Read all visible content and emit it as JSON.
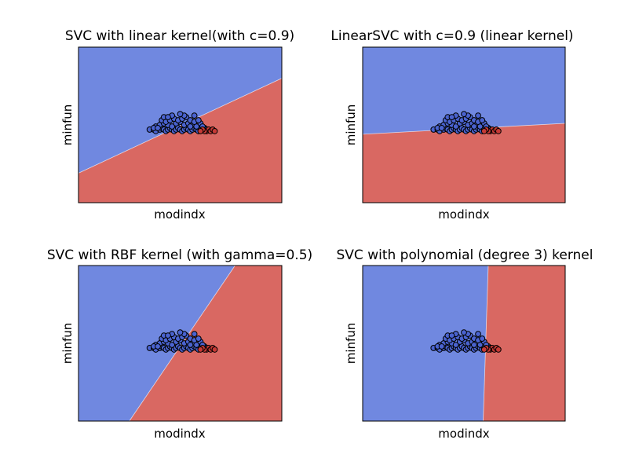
{
  "figure": {
    "background": "#ffffff"
  },
  "colors": {
    "class_blue": "#7088e0",
    "class_red": "#d96862",
    "point_blue": "#4a63d0",
    "point_red": "#c63a36",
    "edge": "#000000"
  },
  "chart_data": [
    {
      "type": "scatter",
      "subtype": "decision-boundary",
      "title": "SVC with linear kernel(with c=0.9)",
      "xlabel": "modindx",
      "ylabel": "minfun",
      "xticks": false,
      "yticks": false,
      "grid": false,
      "boundary": {
        "shape": "line",
        "from": [
          0.0,
          0.19
        ],
        "to": [
          1.0,
          0.8
        ],
        "left_class": "blue",
        "right_class": "red"
      }
    },
    {
      "type": "scatter",
      "subtype": "decision-boundary",
      "title": "LinearSVC with c=0.9 (linear kernel)",
      "xlabel": "modindx",
      "ylabel": "minfun",
      "xticks": false,
      "yticks": false,
      "grid": false,
      "boundary": {
        "shape": "line",
        "from": [
          0.0,
          0.44
        ],
        "to": [
          1.0,
          0.51
        ],
        "upper_class": "blue",
        "lower_class": "red"
      }
    },
    {
      "type": "scatter",
      "subtype": "decision-boundary",
      "title": "SVC with RBF kernel (with gamma=0.5)",
      "xlabel": "modindx",
      "ylabel": "minfun",
      "xticks": false,
      "yticks": false,
      "grid": false,
      "boundary": {
        "shape": "line",
        "from": [
          0.25,
          0.0
        ],
        "to": [
          0.77,
          1.0
        ],
        "left_class": "blue",
        "right_class": "red"
      }
    },
    {
      "type": "scatter",
      "subtype": "decision-boundary",
      "title": "SVC with polynomial (degree 3) kernel",
      "xlabel": "modindx",
      "ylabel": "minfun",
      "xticks": false,
      "yticks": false,
      "grid": false,
      "boundary": {
        "shape": "line",
        "from": [
          0.595,
          0.0
        ],
        "to": [
          0.62,
          1.0
        ],
        "left_class": "blue",
        "right_class": "red"
      }
    }
  ],
  "points": {
    "note_units": "normalized data coordinates within each panel (0..1)",
    "blue": [
      [
        0.35,
        0.47
      ],
      [
        0.37,
        0.47
      ],
      [
        0.38,
        0.46
      ],
      [
        0.4,
        0.47
      ],
      [
        0.41,
        0.48
      ],
      [
        0.42,
        0.47
      ],
      [
        0.43,
        0.46
      ],
      [
        0.44,
        0.47
      ],
      [
        0.45,
        0.48
      ],
      [
        0.46,
        0.47
      ],
      [
        0.47,
        0.46
      ],
      [
        0.48,
        0.47
      ],
      [
        0.49,
        0.48
      ],
      [
        0.5,
        0.47
      ],
      [
        0.51,
        0.46
      ],
      [
        0.52,
        0.47
      ],
      [
        0.53,
        0.48
      ],
      [
        0.54,
        0.47
      ],
      [
        0.55,
        0.46
      ],
      [
        0.56,
        0.47
      ],
      [
        0.57,
        0.48
      ],
      [
        0.58,
        0.47
      ],
      [
        0.59,
        0.46
      ],
      [
        0.6,
        0.47
      ],
      [
        0.62,
        0.48
      ],
      [
        0.63,
        0.47
      ],
      [
        0.38,
        0.49
      ],
      [
        0.4,
        0.5
      ],
      [
        0.42,
        0.51
      ],
      [
        0.44,
        0.5
      ],
      [
        0.46,
        0.49
      ],
      [
        0.48,
        0.51
      ],
      [
        0.5,
        0.52
      ],
      [
        0.52,
        0.5
      ],
      [
        0.54,
        0.51
      ],
      [
        0.56,
        0.5
      ],
      [
        0.58,
        0.49
      ],
      [
        0.6,
        0.51
      ],
      [
        0.41,
        0.53
      ],
      [
        0.43,
        0.52
      ],
      [
        0.45,
        0.53
      ],
      [
        0.47,
        0.54
      ],
      [
        0.49,
        0.53
      ],
      [
        0.51,
        0.54
      ],
      [
        0.53,
        0.55
      ],
      [
        0.55,
        0.53
      ],
      [
        0.57,
        0.52
      ],
      [
        0.59,
        0.53
      ],
      [
        0.46,
        0.56
      ],
      [
        0.52,
        0.56
      ],
      [
        0.5,
        0.57
      ],
      [
        0.57,
        0.56
      ],
      [
        0.42,
        0.55
      ],
      [
        0.44,
        0.55
      ],
      [
        0.37,
        0.48
      ],
      [
        0.61,
        0.49
      ],
      [
        0.55,
        0.49
      ],
      [
        0.39,
        0.48
      ]
    ],
    "red": [
      [
        0.63,
        0.46
      ],
      [
        0.64,
        0.47
      ],
      [
        0.65,
        0.46
      ],
      [
        0.66,
        0.47
      ],
      [
        0.67,
        0.46
      ],
      [
        0.62,
        0.46
      ],
      [
        0.61,
        0.47
      ],
      [
        0.6,
        0.46
      ]
    ]
  }
}
